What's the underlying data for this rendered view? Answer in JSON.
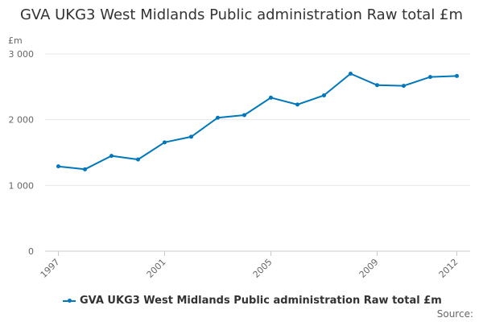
{
  "chart_data": {
    "type": "line",
    "title": "GVA UKG3 West Midlands Public administration Raw total £m",
    "ylabel": "£m",
    "xlabel": "",
    "x": [
      1997,
      1998,
      1999,
      2000,
      2001,
      2002,
      2003,
      2004,
      2005,
      2006,
      2007,
      2008,
      2009,
      2010,
      2011,
      2012
    ],
    "x_tick_labels": [
      "1997",
      "2001",
      "2005",
      "2009",
      "2012"
    ],
    "x_ticks": [
      1997,
      2001,
      2005,
      2009,
      2012
    ],
    "y_ticks": [
      0,
      1000,
      2000,
      3000
    ],
    "y_tick_labels": [
      "0",
      "1 000",
      "2 000",
      "3 000"
    ],
    "ylim": [
      0,
      3000
    ],
    "grid": "horizontal",
    "legend_position": "bottom",
    "series": [
      {
        "name": "GVA UKG3 West Midlands Public administration Raw total £m",
        "color": "#0077bb",
        "values": [
          1290,
          1245,
          1450,
          1395,
          1655,
          1740,
          2030,
          2070,
          2335,
          2230,
          2370,
          2700,
          2525,
          2515,
          2650,
          2665
        ]
      }
    ]
  },
  "footer": {
    "source_label": "Source:"
  }
}
